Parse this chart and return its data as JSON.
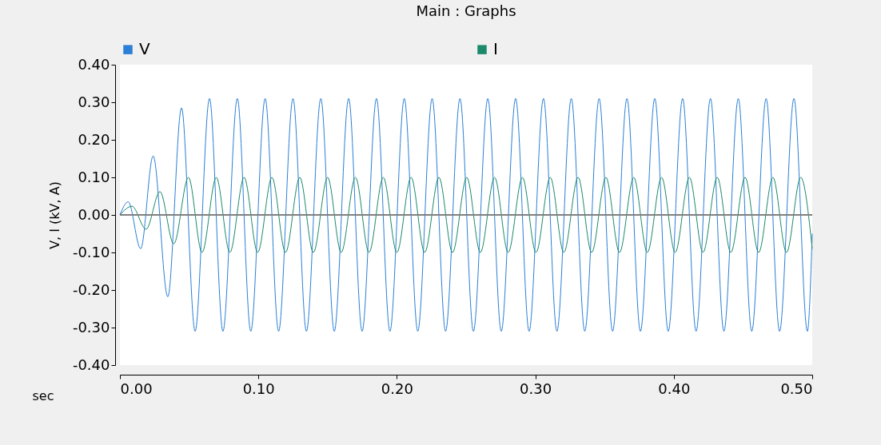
{
  "chart_data": {
    "type": "line",
    "title": "Main : Graphs",
    "xlabel": "sec",
    "ylabel": "V, I (kV, A)",
    "xlim": [
      0,
      0.5
    ],
    "xticks": [
      {
        "value": 0,
        "label": "0.00"
      },
      {
        "value": 0.1,
        "label": "0.10"
      },
      {
        "value": 0.2,
        "label": "0.20"
      },
      {
        "value": 0.3,
        "label": "0.30"
      },
      {
        "value": 0.4,
        "label": "0.40"
      },
      {
        "value": 0.5,
        "label": "0.50"
      }
    ],
    "ylim": [
      -0.4,
      0.4
    ],
    "yticks": [
      {
        "value": -0.4,
        "label": "-0.40"
      },
      {
        "value": -0.3,
        "label": "-0.30"
      },
      {
        "value": -0.2,
        "label": "-0.20"
      },
      {
        "value": -0.1,
        "label": "-0.10"
      },
      {
        "value": 0,
        "label": "0.00"
      },
      {
        "value": 0.1,
        "label": "0.10"
      },
      {
        "value": 0.2,
        "label": "0.20"
      },
      {
        "value": 0.3,
        "label": "0.30"
      },
      {
        "value": 0.4,
        "label": "0.40"
      }
    ],
    "grid": false,
    "legend": "top",
    "marker": "none",
    "line_style": "solid",
    "ref_lines": [
      {
        "axis": "y",
        "value": 0,
        "color": "#808080"
      }
    ],
    "series": [
      {
        "name": "V",
        "color": "#2a7fd6",
        "x": [
          0,
          0.006,
          0.015,
          0.024,
          0.0346,
          0.0445,
          0.0543,
          0.0647,
          0.0744,
          0.0848,
          0.0945,
          0.1049,
          0.1146,
          0.125,
          0.1347,
          0.1451,
          0.1548,
          0.1652,
          0.1749,
          0.1853,
          0.195,
          0.2054,
          0.2151,
          0.2255,
          0.2352,
          0.2456,
          0.2553,
          0.2657,
          0.2754,
          0.2858,
          0.2955,
          0.3059,
          0.3156,
          0.326,
          0.3357,
          0.3461,
          0.3558,
          0.3662,
          0.3759,
          0.3863,
          0.396,
          0.4064,
          0.4161,
          0.4265,
          0.4362,
          0.4466,
          0.4563,
          0.4667,
          0.4764,
          0.4868,
          0.4965,
          0.5
        ],
        "values": [
          0,
          0.035,
          -0.09,
          0.157,
          -0.218,
          0.285,
          -0.31,
          0.31,
          -0.31,
          0.31,
          -0.31,
          0.31,
          -0.31,
          0.31,
          -0.31,
          0.31,
          -0.31,
          0.31,
          -0.31,
          0.31,
          -0.31,
          0.31,
          -0.31,
          0.31,
          -0.31,
          0.31,
          -0.31,
          0.31,
          -0.31,
          0.31,
          -0.31,
          0.31,
          -0.31,
          0.31,
          -0.31,
          0.31,
          -0.31,
          0.31,
          -0.31,
          0.31,
          -0.31,
          0.31,
          -0.31,
          0.31,
          -0.31,
          0.31,
          -0.31,
          0.31,
          -0.31,
          0.31,
          -0.31,
          -0.05
        ]
      },
      {
        "name": "I",
        "color": "#1a8a6a",
        "x": [
          0,
          0.0087,
          0.0189,
          0.0289,
          0.0389,
          0.0495,
          0.0593,
          0.0696,
          0.0794,
          0.0897,
          0.0995,
          0.1098,
          0.1196,
          0.1299,
          0.1397,
          0.15,
          0.1598,
          0.1701,
          0.1799,
          0.1902,
          0.2,
          0.2103,
          0.2201,
          0.2304,
          0.2402,
          0.2505,
          0.2603,
          0.2706,
          0.2804,
          0.2907,
          0.3005,
          0.3108,
          0.3206,
          0.3309,
          0.3407,
          0.351,
          0.3608,
          0.3711,
          0.3809,
          0.3912,
          0.401,
          0.4113,
          0.4211,
          0.4314,
          0.4412,
          0.4515,
          0.4613,
          0.4716,
          0.4814,
          0.4917,
          0.5
        ],
        "values": [
          0,
          0.023,
          -0.038,
          0.062,
          -0.077,
          0.1,
          -0.1,
          0.1,
          -0.1,
          0.1,
          -0.1,
          0.1,
          -0.1,
          0.1,
          -0.1,
          0.1,
          -0.1,
          0.1,
          -0.1,
          0.1,
          -0.1,
          0.1,
          -0.1,
          0.1,
          -0.1,
          0.1,
          -0.1,
          0.1,
          -0.1,
          0.1,
          -0.1,
          0.1,
          -0.1,
          0.1,
          -0.1,
          0.1,
          -0.1,
          0.1,
          -0.1,
          0.1,
          -0.1,
          0.1,
          -0.1,
          0.1,
          -0.1,
          0.1,
          -0.1,
          0.1,
          -0.1,
          0.1,
          -0.09
        ]
      }
    ]
  }
}
